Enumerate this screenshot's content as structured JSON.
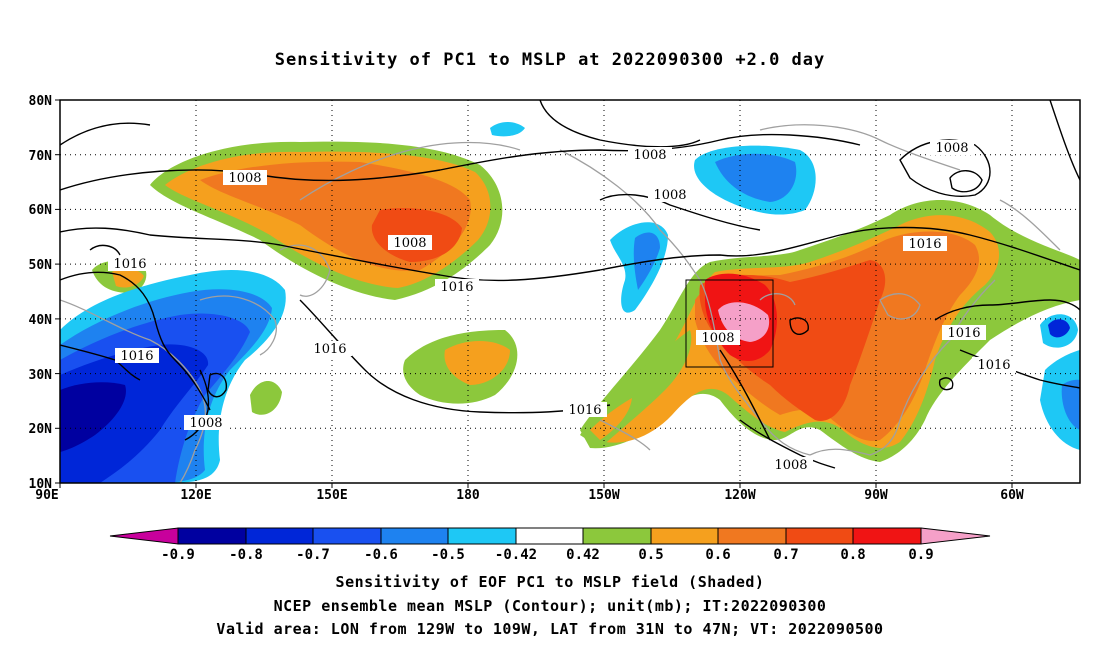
{
  "title": "Sensitivity of PC1 to MSLP at 2022090300 +2.0 day",
  "map": {
    "lat_labels": [
      "80N",
      "70N",
      "60N",
      "50N",
      "40N",
      "30N",
      "20N",
      "10N"
    ],
    "lon_labels": [
      "90E",
      "120E",
      "150E",
      "180",
      "150W",
      "120W",
      "90W",
      "60W"
    ],
    "contour_labels": [
      "1008",
      "1008",
      "1008",
      "1008",
      "1008",
      "1008",
      "1016",
      "1016",
      "1016",
      "1016",
      "1016",
      "1016",
      "1016",
      "1008",
      "1016"
    ],
    "valid_box": {
      "lon": [
        "129W",
        "109W"
      ],
      "lat": [
        "31N",
        "47N"
      ]
    }
  },
  "colorbar": {
    "labels": [
      "-0.9",
      "-0.8",
      "-0.7",
      "-0.6",
      "-0.5",
      "-0.42",
      "0.42",
      "0.5",
      "0.6",
      "0.7",
      "0.8",
      "0.9"
    ],
    "colors": [
      "#c8009c",
      "#0000a0",
      "#0026d8",
      "#1950f0",
      "#1e82f0",
      "#1ec8f5",
      "#ffffff",
      "#8cc83c",
      "#f5a01e",
      "#f07820",
      "#f04b14",
      "#f01414",
      "#f5a0c8"
    ]
  },
  "captions": [
    "Sensitivity of EOF PC1 to MSLP field (Shaded)",
    "NCEP ensemble mean MSLP (Contour); unit(mb); IT:2022090300",
    "Valid area: LON from 129W to 109W, LAT from 31N to 47N; VT: 2022090500"
  ]
}
